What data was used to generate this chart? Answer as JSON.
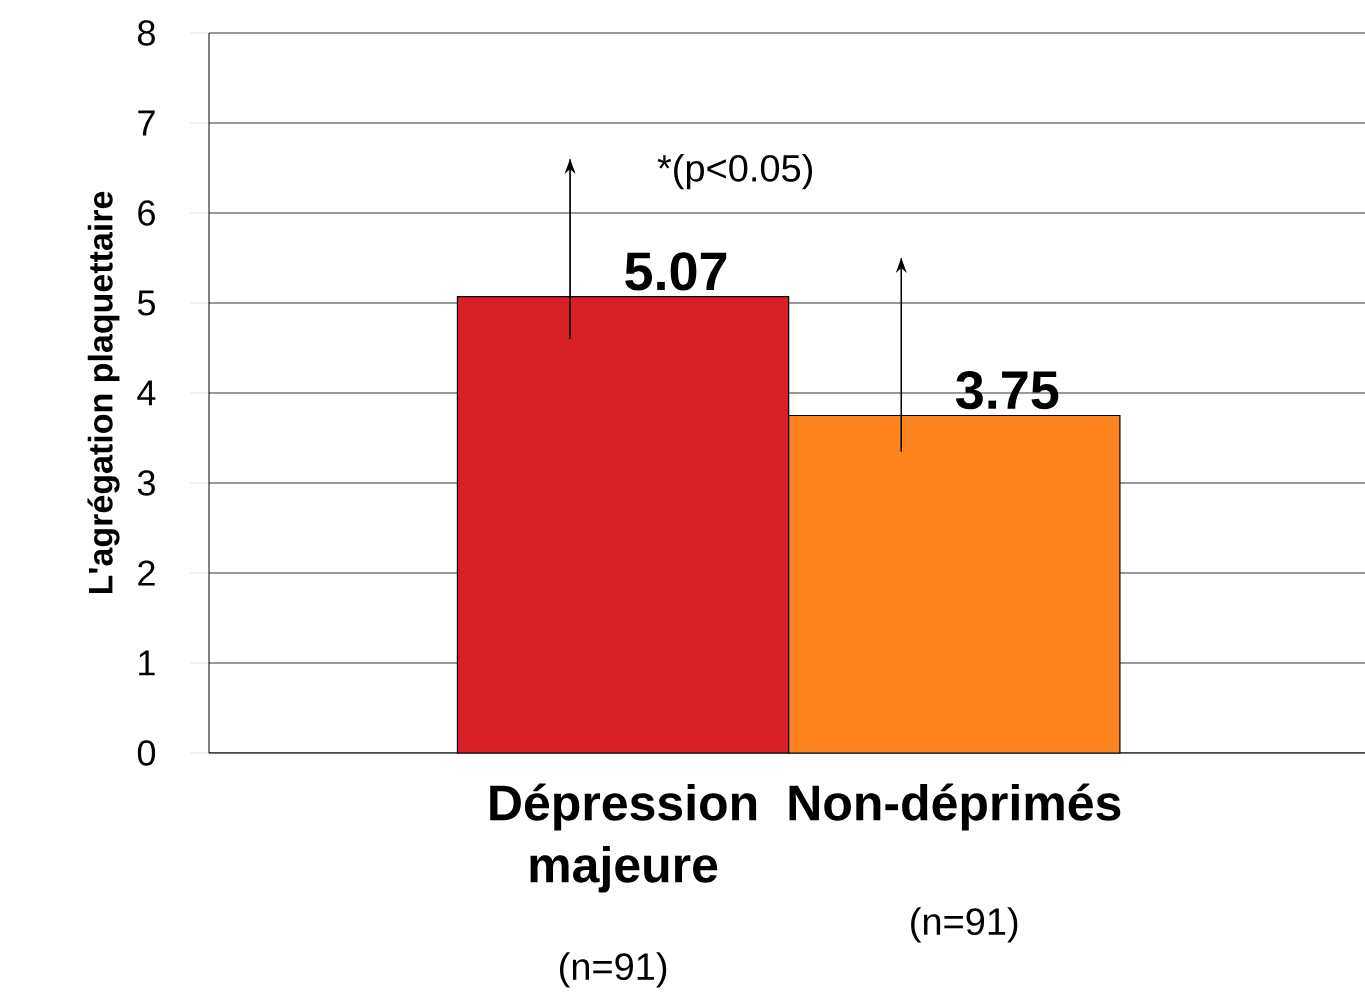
{
  "chart_data": {
    "type": "bar",
    "ylabel": "L'agrégation plaquettaire",
    "categories": [
      "Dépression majeure",
      "Non-déprimés"
    ],
    "values": [
      5.07,
      3.75
    ],
    "colors": [
      "#d92027",
      "#fd841e"
    ],
    "errors": [
      [
        4.6,
        6.6
      ],
      [
        3.35,
        5.5
      ]
    ],
    "data_labels": true,
    "ylim": [
      0,
      8
    ],
    "yticks": [
      0,
      1,
      2,
      3,
      4,
      5,
      6,
      7,
      8
    ],
    "grid": "y",
    "annotations": [
      "*(p<0.05)",
      "(n=91)",
      "(n=91)"
    ]
  }
}
